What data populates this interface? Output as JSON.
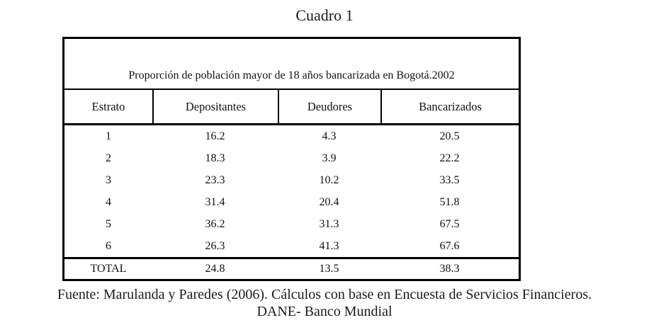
{
  "page": {
    "title": "Cuadro 1"
  },
  "table": {
    "caption": "Proporción de población mayor de 18 años bancarizada en Bogotá.2002",
    "columns": [
      "Estrato",
      "Depositantes",
      "Deudores",
      "Bancarizados"
    ],
    "rows": [
      [
        "1",
        "16.2",
        "4.3",
        "20.5"
      ],
      [
        "2",
        "18.3",
        "3.9",
        "22.2"
      ],
      [
        "3",
        "23.3",
        "10.2",
        "33.5"
      ],
      [
        "4",
        "31.4",
        "20.4",
        "51.8"
      ],
      [
        "5",
        "36.2",
        "31.3",
        "67.5"
      ],
      [
        "6",
        "26.3",
        "41.3",
        "67.6"
      ]
    ],
    "total": [
      "TOTAL",
      "24.8",
      "13.5",
      "38.3"
    ]
  },
  "footer": {
    "line1": "Fuente: Marulanda y Paredes (2006). Cálculos con base en Encuesta de Servicios Financieros.",
    "line2": "DANE- Banco Mundial"
  },
  "colors": {
    "border": "#000000",
    "text": "#111111",
    "background": "#ffffff"
  }
}
